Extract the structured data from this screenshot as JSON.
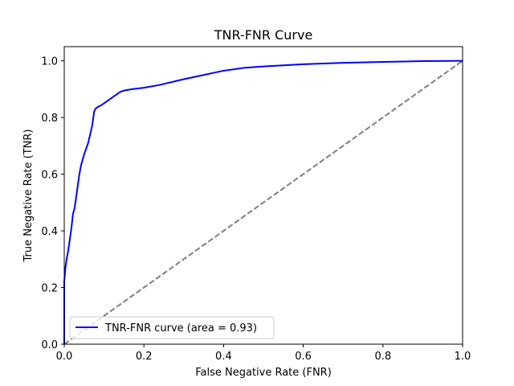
{
  "chart_data": {
    "type": "line",
    "title": "TNR-FNR Curve",
    "xlabel": "False Negative Rate (FNR)",
    "ylabel": "True Negative Rate (TNR)",
    "xlim": [
      0.0,
      1.0
    ],
    "ylim": [
      0.0,
      1.05
    ],
    "xticks": [
      "0.0",
      "0.2",
      "0.4",
      "0.6",
      "0.8",
      "1.0"
    ],
    "yticks": [
      "0.0",
      "0.2",
      "0.4",
      "0.6",
      "0.8",
      "1.0"
    ],
    "grid": false,
    "legend_position": "lower-left",
    "series": [
      {
        "name": "TNR-FNR curve (area = 0.93)",
        "color": "#0000ff",
        "style": "solid",
        "x": [
          0.0,
          0.0,
          0.003,
          0.006,
          0.01,
          0.014,
          0.018,
          0.022,
          0.026,
          0.03,
          0.034,
          0.038,
          0.042,
          0.046,
          0.05,
          0.055,
          0.06,
          0.065,
          0.07,
          0.073,
          0.075,
          0.078,
          0.082,
          0.088,
          0.095,
          0.1,
          0.11,
          0.12,
          0.13,
          0.14,
          0.15,
          0.17,
          0.2,
          0.24,
          0.3,
          0.35,
          0.4,
          0.45,
          0.5,
          0.6,
          0.7,
          0.8,
          0.9,
          1.0
        ],
        "y": [
          0.0,
          0.22,
          0.27,
          0.3,
          0.33,
          0.37,
          0.41,
          0.46,
          0.48,
          0.52,
          0.56,
          0.6,
          0.63,
          0.65,
          0.67,
          0.69,
          0.71,
          0.74,
          0.77,
          0.8,
          0.82,
          0.83,
          0.835,
          0.84,
          0.845,
          0.85,
          0.86,
          0.87,
          0.88,
          0.89,
          0.895,
          0.9,
          0.905,
          0.915,
          0.935,
          0.95,
          0.965,
          0.975,
          0.98,
          0.988,
          0.993,
          0.996,
          0.999,
          1.0
        ]
      },
      {
        "name": "",
        "color": "#808080",
        "style": "dashed",
        "x": [
          0.0,
          1.0
        ],
        "y": [
          0.0,
          1.0
        ]
      }
    ]
  }
}
